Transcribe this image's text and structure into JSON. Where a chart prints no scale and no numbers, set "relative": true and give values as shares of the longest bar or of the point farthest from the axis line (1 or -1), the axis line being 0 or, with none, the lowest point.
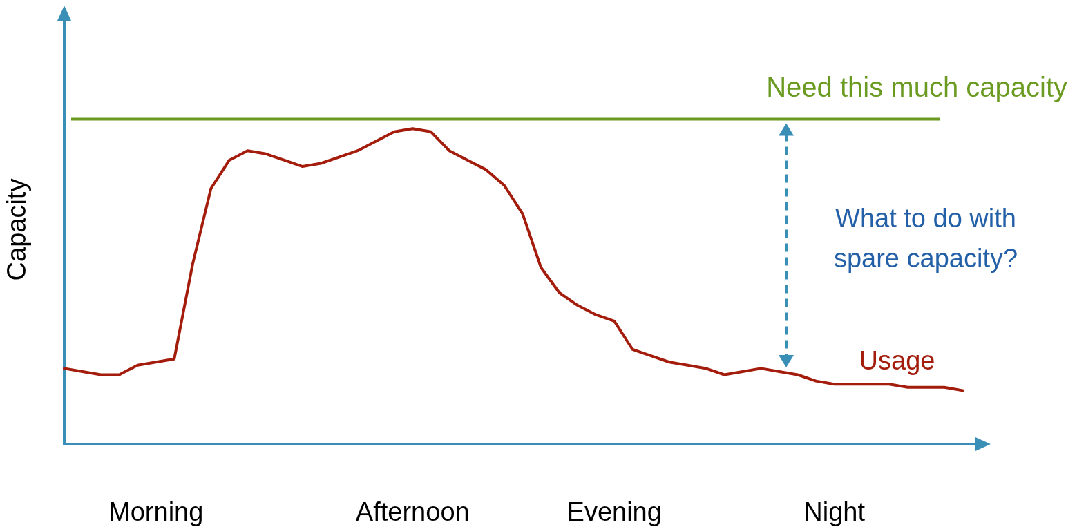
{
  "chart_data": {
    "type": "line",
    "ylabel": "Capacity",
    "relative": true,
    "grid": false,
    "legend": false,
    "marker": "none",
    "line_style": "solid",
    "categories": [
      null,
      null,
      null,
      null,
      null,
      "Morning",
      null,
      null,
      null,
      null,
      null,
      null,
      null,
      null,
      null,
      null,
      null,
      null,
      null,
      "Afternoon",
      null,
      null,
      null,
      null,
      null,
      null,
      null,
      null,
      null,
      null,
      "Evening",
      null,
      null,
      null,
      null,
      null,
      null,
      null,
      null,
      null,
      null,
      null,
      "Night",
      null,
      null,
      null,
      null,
      null,
      null,
      null,
      null
    ],
    "series": [
      {
        "name": "Usage",
        "color": "#a31c0c",
        "values": [
          0.24,
          0.23,
          0.22,
          0.22,
          0.25,
          0.26,
          0.27,
          0.57,
          0.81,
          0.9,
          0.93,
          0.92,
          0.9,
          0.88,
          0.89,
          0.91,
          0.93,
          0.96,
          0.99,
          1,
          0.99,
          0.93,
          0.9,
          0.87,
          0.82,
          0.73,
          0.56,
          0.48,
          0.44,
          0.41,
          0.39,
          0.3,
          0.28,
          0.26,
          0.25,
          0.24,
          0.22,
          0.23,
          0.24,
          0.23,
          0.22,
          0.2,
          0.19,
          0.19,
          0.19,
          0.19,
          0.18,
          0.18,
          0.18,
          0.17,
          null
        ]
      }
    ],
    "ref_lines": [
      {
        "axis": "y",
        "value": 1.03,
        "label": "Need this much capacity",
        "color": "#6a9a1f"
      }
    ],
    "annotations": [
      "What to do with spare capacity?"
    ]
  }
}
